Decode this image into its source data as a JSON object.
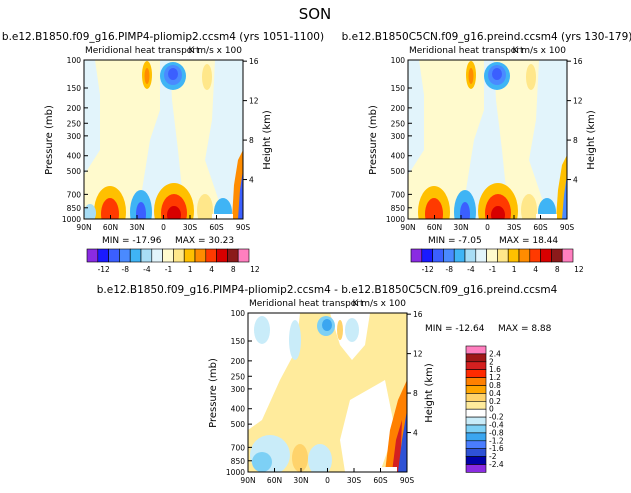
{
  "figure_title": "SON",
  "colors": {
    "bar_scale": [
      "#8a2be2",
      "#1a1aff",
      "#3b5fff",
      "#4a8aff",
      "#3fb4f5",
      "#a8ddf5",
      "#e2f4fb",
      "#fffacd",
      "#ffe78a",
      "#ffc000",
      "#ff8c00",
      "#ff3a00",
      "#d80000",
      "#8b1a1a",
      "#ff7fbf"
    ],
    "diff_scale": [
      "#ff7fbf",
      "#a01818",
      "#d42020",
      "#ff2a00",
      "#ff8000",
      "#ffa500",
      "#ffd36b",
      "#ffeb9c",
      "#ffffff",
      "#c9ecf9",
      "#7dd0f5",
      "#3ba6f0",
      "#4a7dff",
      "#2e52d6",
      "#0000a8",
      "#8a2be2"
    ]
  },
  "chart_data": [
    {
      "type": "heatmap",
      "title": "b.e12.B1850.f09_g16.PIMP4-pliomip2.ccsm4 (yrs 1051-1100)",
      "subtitle": "Meridional heat transport",
      "units_label": "K m/s x 100",
      "ylabel": "Pressure (mb)",
      "ylabel_right": "Height (km)",
      "x_ticks": [
        "90N",
        "60N",
        "30N",
        "0",
        "30S",
        "60S",
        "90S"
      ],
      "y_ticks": [
        "100",
        "150",
        "200",
        "250",
        "300",
        "400",
        "500",
        "700",
        "850",
        "1000"
      ],
      "y_ticks_right": [
        "16",
        "12",
        "8",
        "4"
      ],
      "min_label": "MIN = -17.96",
      "max_label": "MAX = 30.23",
      "colorbar_labels": [
        "-12",
        "-8",
        "-4",
        "-1",
        "1",
        "4",
        "8",
        "12"
      ]
    },
    {
      "type": "heatmap",
      "title": "b.e12.B1850C5CN.f09_g16.preind.ccsm4 (yrs 130-179)",
      "subtitle": "Meridional heat transport",
      "units_label": "K m/s x 100",
      "ylabel": "Pressure (mb)",
      "ylabel_right": "Height (km)",
      "x_ticks": [
        "90N",
        "60N",
        "30N",
        "0",
        "30S",
        "60S",
        "90S"
      ],
      "y_ticks": [
        "100",
        "150",
        "200",
        "250",
        "300",
        "400",
        "500",
        "700",
        "850",
        "1000"
      ],
      "y_ticks_right": [
        "16",
        "12",
        "8",
        "4"
      ],
      "min_label": "MIN = -7.05",
      "max_label": "MAX = 18.44",
      "colorbar_labels": [
        "-12",
        "-8",
        "-4",
        "-1",
        "1",
        "4",
        "8",
        "12"
      ]
    },
    {
      "type": "heatmap",
      "title": "b.e12.B1850.f09_g16.PIMP4-pliomip2.ccsm4 - b.e12.B1850C5CN.f09_g16.preind.ccsm4",
      "subtitle": "Meridional heat transport",
      "units_label": "K m/s x 100",
      "ylabel": "Pressure (mb)",
      "ylabel_right": "Height (km)",
      "x_ticks": [
        "90N",
        "60N",
        "30N",
        "0",
        "30S",
        "60S",
        "90S"
      ],
      "y_ticks": [
        "100",
        "150",
        "200",
        "250",
        "300",
        "400",
        "500",
        "700",
        "850",
        "1000"
      ],
      "y_ticks_right": [
        "16",
        "12",
        "8",
        "4"
      ],
      "min_label": "MIN = -12.64",
      "max_label": "MAX = 8.88",
      "colorbar_labels": [
        "2.4",
        "2",
        "1.6",
        "1.2",
        "0.8",
        "0.4",
        "0.2",
        "0",
        "-0.2",
        "-0.4",
        "-0.8",
        "-1.2",
        "-1.6",
        "-2",
        "-2.4"
      ]
    }
  ]
}
